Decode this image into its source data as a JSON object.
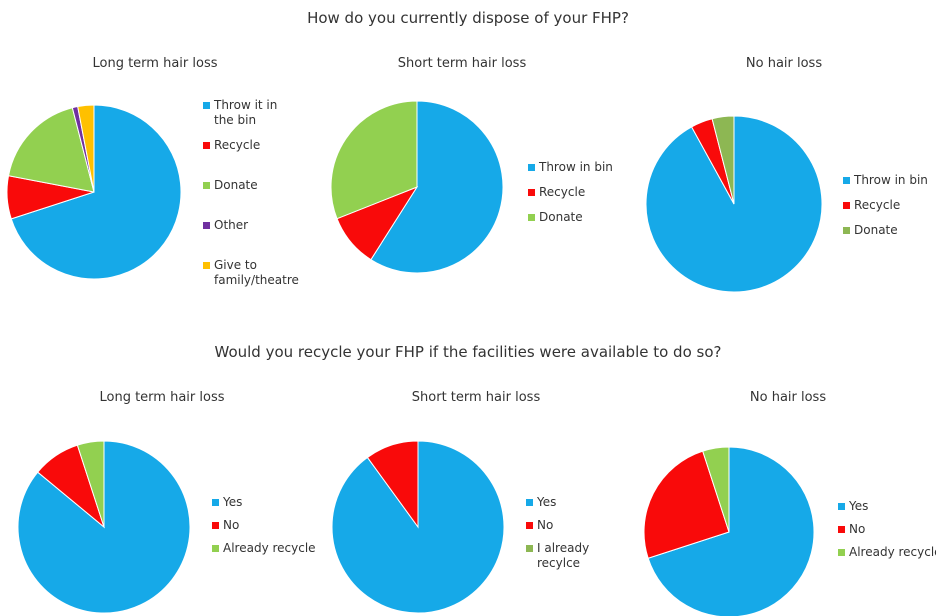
{
  "titles": {
    "top": "How do you currently dispose of your FHP?",
    "bottom": "Would you recycle your FHP if the facilities were available to do so?"
  },
  "colors": {
    "blue": "#16A9E8",
    "red": "#F90A0A",
    "green": "#92D050",
    "olive_green": "#8DB753",
    "purple": "#7030A0",
    "orange": "#FFC000"
  },
  "chart_data": [
    {
      "type": "pie",
      "title": "Long term hair loss",
      "labels": [
        "Throw it in the bin",
        "Recycle",
        "Donate",
        "Other",
        "Give to family/theatre"
      ],
      "values": [
        70,
        8,
        18,
        1,
        3
      ],
      "colors": [
        "#16A9E8",
        "#F90A0A",
        "#92D050",
        "#7030A0",
        "#FFC000"
      ]
    },
    {
      "type": "pie",
      "title": "Short term hair loss",
      "labels": [
        "Throw in bin",
        "Recycle",
        "Donate"
      ],
      "values": [
        59,
        10,
        31
      ],
      "colors": [
        "#16A9E8",
        "#F90A0A",
        "#92D050"
      ]
    },
    {
      "type": "pie",
      "title": "No hair loss",
      "labels": [
        "Throw in bin",
        "Recycle",
        "Donate"
      ],
      "values": [
        92,
        4,
        4
      ],
      "colors": [
        "#16A9E8",
        "#F90A0A",
        "#8DB753"
      ]
    },
    {
      "type": "pie",
      "title": "Long term hair loss",
      "labels": [
        "Yes",
        "No",
        "Already recycle"
      ],
      "values": [
        86,
        9,
        5
      ],
      "colors": [
        "#16A9E8",
        "#F90A0A",
        "#92D050"
      ]
    },
    {
      "type": "pie",
      "title": "Short term hair loss",
      "labels": [
        "Yes",
        "No",
        "I already recylce"
      ],
      "values": [
        90,
        10,
        0
      ],
      "colors": [
        "#16A9E8",
        "#F90A0A",
        "#8DB753"
      ]
    },
    {
      "type": "pie",
      "title": "No hair loss",
      "labels": [
        "Yes",
        "No",
        "Already recycle"
      ],
      "values": [
        70,
        25,
        5
      ],
      "colors": [
        "#16A9E8",
        "#F90A0A",
        "#92D050"
      ]
    }
  ]
}
